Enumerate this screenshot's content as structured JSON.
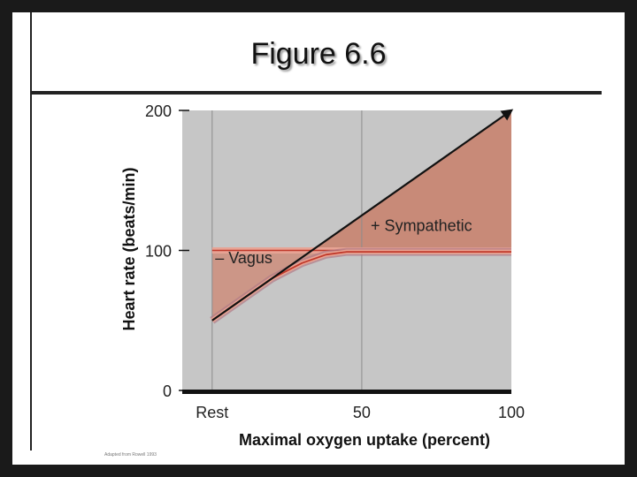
{
  "slide": {
    "title": "Figure 6.6",
    "credit": "Adapted from Rowell 1993"
  },
  "colors": {
    "plot_background": "#c6c6c6",
    "vagus_fill": "#cc9687",
    "sympathetic_fill": "#c88a78",
    "curve_red": "#c0392b",
    "arrow": "#111111"
  },
  "chart_data": {
    "type": "line",
    "xlabel": "Maximal oxygen uptake (percent)",
    "ylabel": "Heart rate (beats/min)",
    "x_ticks": [
      {
        "x": 0,
        "label": "Rest"
      },
      {
        "x": 50,
        "label": "50"
      },
      {
        "x": 100,
        "label": "100"
      }
    ],
    "y_ticks": [
      {
        "y": 0,
        "label": "0"
      },
      {
        "y": 100,
        "label": "100"
      },
      {
        "y": 200,
        "label": "200"
      }
    ],
    "xlim": [
      -10,
      100
    ],
    "ylim": [
      0,
      200
    ],
    "grid": "vertical lines at Rest and 50",
    "series": [
      {
        "points": [
          [
            0,
            50
          ],
          [
            100,
            200
          ]
        ]
      },
      {
        "points": [
          [
            0,
            50
          ],
          [
            10,
            65
          ],
          [
            20,
            80
          ],
          [
            30,
            91
          ],
          [
            38,
            97
          ],
          [
            45,
            99
          ],
          [
            50,
            99
          ],
          [
            75,
            99
          ],
          [
            100,
            99
          ]
        ]
      },
      {
        "points": [
          [
            0,
            100
          ],
          [
            100,
            100
          ]
        ]
      }
    ],
    "annotations": [
      {
        "text": "– Vagus",
        "x": 1,
        "y": 91
      },
      {
        "text": "+ Sympathetic",
        "x": 53,
        "y": 114
      }
    ]
  }
}
